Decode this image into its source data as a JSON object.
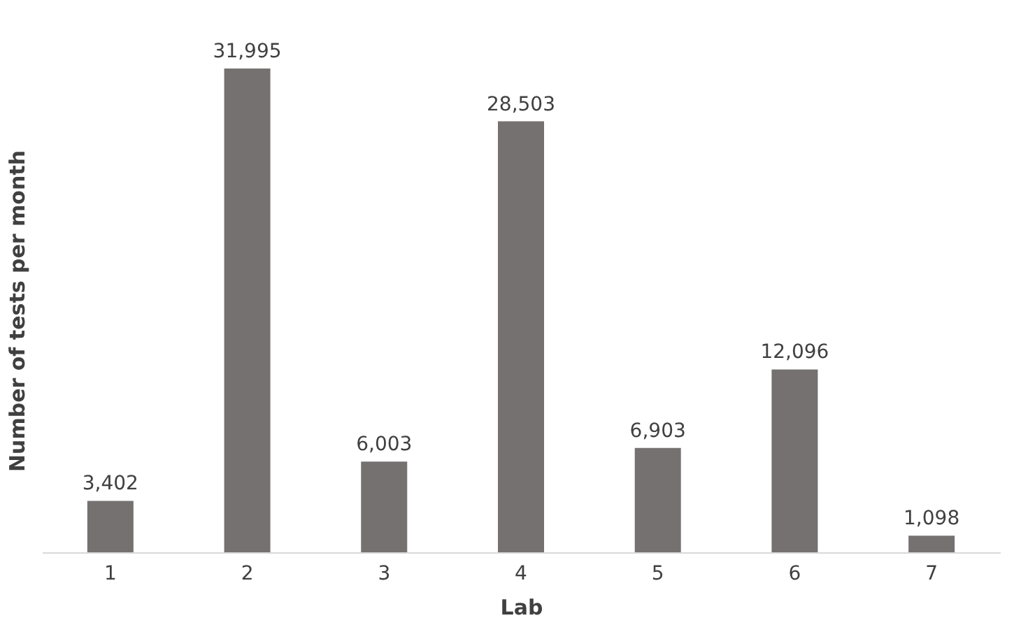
{
  "chart_data": {
    "type": "bar",
    "xlabel": "Lab",
    "ylabel": "Number of tests per month",
    "categories": [
      "1",
      "2",
      "3",
      "4",
      "5",
      "6",
      "7"
    ],
    "values": [
      3402,
      31995,
      6003,
      28503,
      6903,
      12096,
      1098
    ],
    "value_labels": [
      "3,402",
      "31,995",
      "6,003",
      "28,503",
      "6,903",
      "12,096",
      "1,098"
    ],
    "color": "#767171",
    "grid": false
  }
}
